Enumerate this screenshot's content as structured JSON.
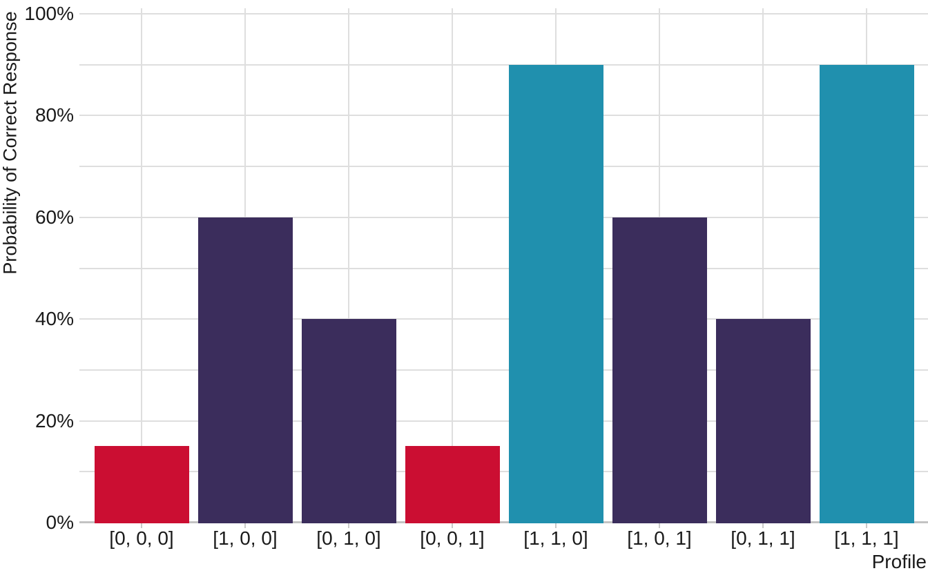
{
  "chart_data": {
    "type": "bar",
    "title": "",
    "xlabel": "Profile",
    "ylabel": "Probability of Correct Response",
    "categories": [
      "[0, 0, 0]",
      "[1, 0, 0]",
      "[0, 1, 0]",
      "[0, 0, 1]",
      "[1, 1, 0]",
      "[1, 0, 1]",
      "[0, 1, 1]",
      "[1, 1, 1]"
    ],
    "values": [
      15,
      60,
      40,
      15,
      90,
      60,
      40,
      90
    ],
    "bar_colors": [
      "#CB0E32",
      "#3B2D5C",
      "#3B2D5C",
      "#CB0E32",
      "#2090AE",
      "#3B2D5C",
      "#3B2D5C",
      "#2090AE"
    ],
    "value_unit": "%",
    "ylim": [
      0,
      100
    ],
    "ytick_major": [
      0,
      20,
      40,
      60,
      80,
      100
    ],
    "ytick_labels": [
      "0%",
      "20%",
      "40%",
      "60%",
      "80%",
      "100%"
    ],
    "grid_minor_step": 10,
    "grid": "on",
    "legend": "none",
    "colors": {
      "background": "#FFFFFF",
      "gridline": "#DEDEDE",
      "axis_line": "#C3C3C3",
      "tick_mark": "#C9C9C9",
      "text": "#1A1A1A"
    }
  }
}
